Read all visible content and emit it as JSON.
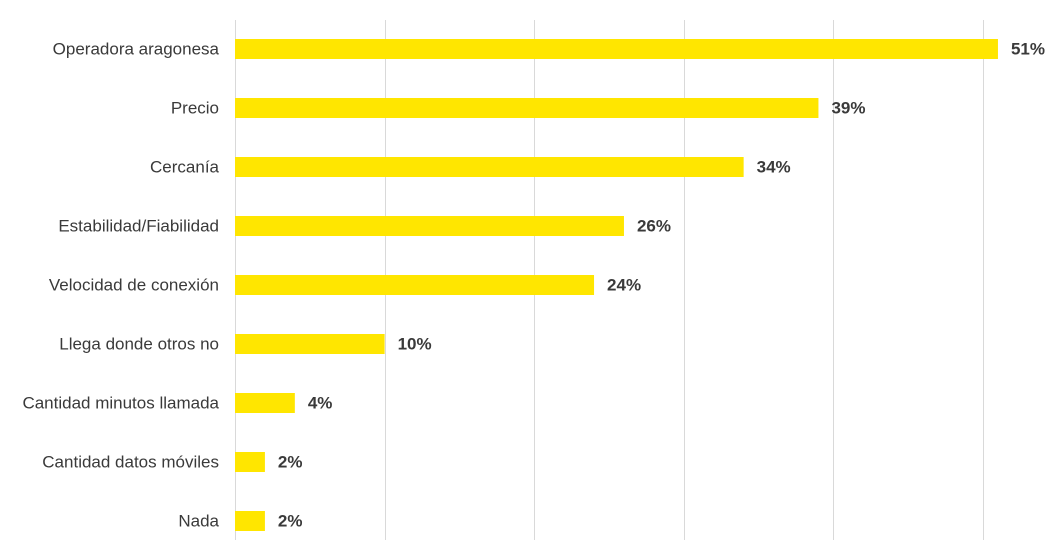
{
  "chart_data": {
    "type": "bar",
    "orientation": "horizontal",
    "categories": [
      "Operadora aragonesa",
      "Precio",
      "Cercanía",
      "Estabilidad/Fiabilidad",
      "Velocidad de conexión",
      "Llega donde otros no",
      "Cantidad minutos llamada",
      "Cantidad datos móviles",
      "Nada"
    ],
    "values": [
      51,
      39,
      34,
      26,
      24,
      10,
      4,
      2,
      2
    ],
    "data_labels": [
      "51%",
      "39%",
      "34%",
      "26%",
      "24%",
      "10%",
      "4%",
      "2%",
      "2%"
    ],
    "xlim": [
      0,
      50
    ],
    "x_gridlines": [
      0,
      10,
      20,
      30,
      40,
      50
    ],
    "grid": true,
    "bar_color": "#ffe600",
    "legend": "none"
  }
}
